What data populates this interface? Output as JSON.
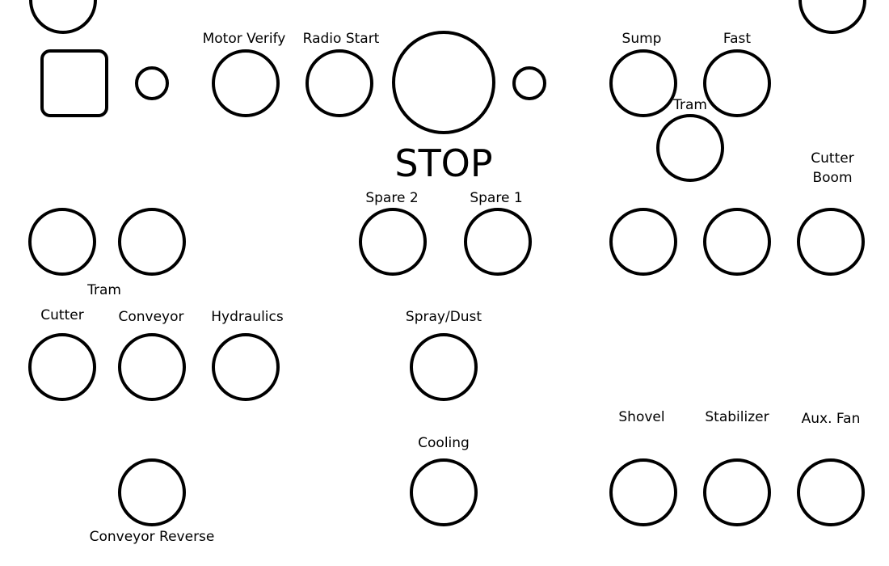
{
  "labels": {
    "motor_verify": "Motor Verify",
    "radio_start": "Radio Start",
    "stop": "STOP",
    "sump": "Sump",
    "fast": "Fast",
    "tram_right": "Tram",
    "cutter_boom": "Cutter\nBoom",
    "spare_2": "Spare 2",
    "spare_1": "Spare 1",
    "tram_left": "Tram",
    "cutter": "Cutter",
    "conveyor": "Conveyor",
    "hydraulics": "Hydraulics",
    "spray_dust": "Spray/Dust",
    "shovel": "Shovel",
    "stabilizer": "Stabilizer",
    "aux_fan": "Aux. Fan",
    "cooling": "Cooling",
    "conveyor_reverse": "Conveyor Reverse"
  }
}
